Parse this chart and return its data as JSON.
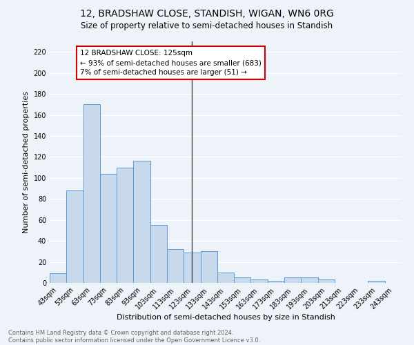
{
  "title": "12, BRADSHAW CLOSE, STANDISH, WIGAN, WN6 0RG",
  "subtitle": "Size of property relative to semi-detached houses in Standish",
  "xlabel": "Distribution of semi-detached houses by size in Standish",
  "ylabel": "Number of semi-detached properties",
  "categories": [
    "43sqm",
    "53sqm",
    "63sqm",
    "73sqm",
    "83sqm",
    "93sqm",
    "103sqm",
    "113sqm",
    "123sqm",
    "133sqm",
    "143sqm",
    "153sqm",
    "163sqm",
    "173sqm",
    "183sqm",
    "193sqm",
    "203sqm",
    "213sqm",
    "223sqm",
    "233sqm",
    "243sqm"
  ],
  "values": [
    9,
    88,
    170,
    104,
    110,
    116,
    55,
    32,
    29,
    30,
    10,
    5,
    3,
    2,
    5,
    5,
    3,
    0,
    0,
    2,
    0
  ],
  "bar_color": "#c9d9ec",
  "bar_edge_color": "#5b9bd5",
  "background_color": "#eef2f9",
  "grid_color": "#ffffff",
  "annotation_title": "12 BRADSHAW CLOSE: 125sqm",
  "annotation_line1": "← 93% of semi-detached houses are smaller (683)",
  "annotation_line2": "7% of semi-detached houses are larger (51) →",
  "annotation_box_color": "#ffffff",
  "annotation_border_color": "#cc0000",
  "vline_color": "#444444",
  "vline_x_bin": 8,
  "footer_line1": "Contains HM Land Registry data © Crown copyright and database right 2024.",
  "footer_line2": "Contains public sector information licensed under the Open Government Licence v3.0.",
  "ylim": [
    0,
    230
  ],
  "yticks": [
    0,
    20,
    40,
    60,
    80,
    100,
    120,
    140,
    160,
    180,
    200,
    220
  ],
  "title_fontsize": 10,
  "subtitle_fontsize": 8.5,
  "ylabel_fontsize": 8,
  "xlabel_fontsize": 8,
  "tick_fontsize": 7,
  "annotation_fontsize": 7.5,
  "footer_fontsize": 6
}
